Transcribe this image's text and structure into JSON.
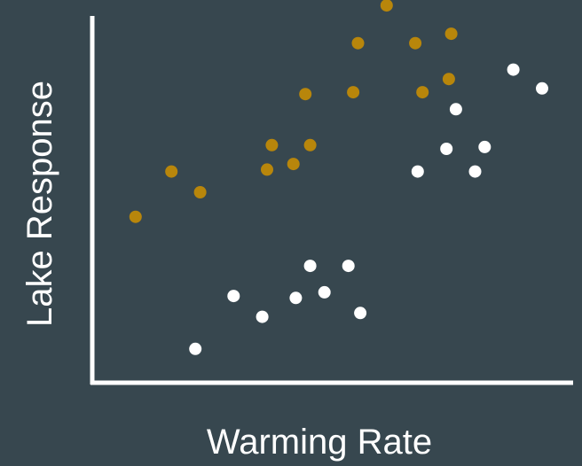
{
  "chart_data": {
    "type": "scatter",
    "title": "",
    "xlabel": "Warming Rate",
    "ylabel": "Lake Response",
    "xlim": [
      0,
      10
    ],
    "ylim": [
      0,
      10
    ],
    "grid": false,
    "x_ticks_shown": false,
    "y_ticks_shown": false,
    "legend": "none",
    "series": [
      {
        "color": "#b8860b",
        "points": [
          {
            "x": 0.85,
            "y": 4.35
          },
          {
            "x": 1.6,
            "y": 5.55
          },
          {
            "x": 2.2,
            "y": 5.0
          },
          {
            "x": 3.6,
            "y": 5.6
          },
          {
            "x": 3.7,
            "y": 6.25
          },
          {
            "x": 4.15,
            "y": 5.75
          },
          {
            "x": 4.4,
            "y": 7.6
          },
          {
            "x": 4.5,
            "y": 6.25
          },
          {
            "x": 5.4,
            "y": 7.65
          },
          {
            "x": 5.5,
            "y": 8.95
          },
          {
            "x": 6.1,
            "y": 9.95
          },
          {
            "x": 6.7,
            "y": 8.95
          },
          {
            "x": 6.85,
            "y": 7.65
          },
          {
            "x": 7.4,
            "y": 8.0
          },
          {
            "x": 7.45,
            "y": 9.2
          }
        ]
      },
      {
        "color": "#ffffff",
        "points": [
          {
            "x": 2.1,
            "y": 0.85
          },
          {
            "x": 2.9,
            "y": 2.25
          },
          {
            "x": 3.5,
            "y": 1.7
          },
          {
            "x": 4.2,
            "y": 2.2
          },
          {
            "x": 4.5,
            "y": 3.05
          },
          {
            "x": 4.8,
            "y": 2.35
          },
          {
            "x": 5.3,
            "y": 3.05
          },
          {
            "x": 5.55,
            "y": 1.8
          },
          {
            "x": 6.75,
            "y": 5.55
          },
          {
            "x": 7.35,
            "y": 6.15
          },
          {
            "x": 7.55,
            "y": 7.2
          },
          {
            "x": 7.95,
            "y": 5.55
          },
          {
            "x": 8.15,
            "y": 6.2
          },
          {
            "x": 8.75,
            "y": 8.25
          },
          {
            "x": 9.35,
            "y": 7.75
          }
        ]
      }
    ]
  }
}
